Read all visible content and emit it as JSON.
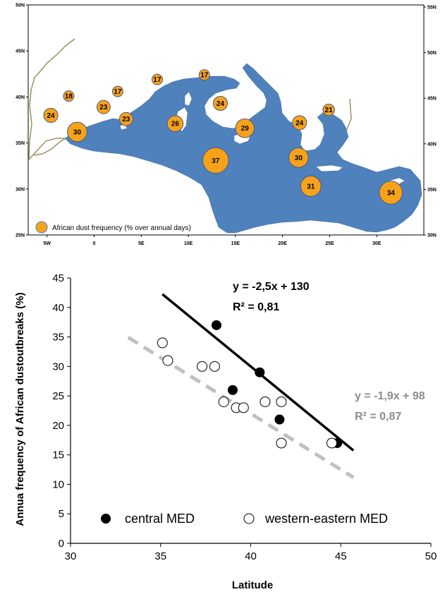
{
  "colors": {
    "sea": "#4f81bd",
    "dust": "#f7a21b",
    "coast": "#9d8f66",
    "trend_gray": "#c0c0c0",
    "eq_gray": "#8c8c8c"
  },
  "chart_data": [
    {
      "type": "scatter",
      "map": true,
      "legend_label": "African dust frequency (% over annual days)",
      "left_lat_ticks": [
        "50N",
        "45N",
        "40N",
        "35N",
        "30N",
        "25N"
      ],
      "right_lat_ticks": [
        "55N",
        "50N",
        "45N",
        "40N",
        "35N",
        "30N"
      ],
      "lon_ticks": [
        "5W",
        "0",
        "5E",
        "10E",
        "15E",
        "20E",
        "25E",
        "30E"
      ],
      "xlim": [
        -7,
        35
      ],
      "ylim": [
        25,
        50
      ],
      "sites": [
        {
          "lon": -4.6,
          "lat": 38.0,
          "value": 24
        },
        {
          "lon": -2.7,
          "lat": 40.1,
          "value": 18
        },
        {
          "lon": -1.8,
          "lat": 36.2,
          "value": 30
        },
        {
          "lon": 1.0,
          "lat": 38.9,
          "value": 23
        },
        {
          "lon": 2.5,
          "lat": 40.6,
          "value": 17
        },
        {
          "lon": 3.4,
          "lat": 37.6,
          "value": 23
        },
        {
          "lon": 6.7,
          "lat": 41.9,
          "value": 17
        },
        {
          "lon": 8.6,
          "lat": 37.1,
          "value": 26
        },
        {
          "lon": 11.7,
          "lat": 42.4,
          "value": 17
        },
        {
          "lon": 12.9,
          "lat": 33.1,
          "value": 37
        },
        {
          "lon": 13.4,
          "lat": 39.3,
          "value": 24
        },
        {
          "lon": 16.0,
          "lat": 36.6,
          "value": 29
        },
        {
          "lon": 21.8,
          "lat": 37.2,
          "value": 24
        },
        {
          "lon": 21.7,
          "lat": 33.4,
          "value": 30
        },
        {
          "lon": 24.9,
          "lat": 38.6,
          "value": 21
        },
        {
          "lon": 23.0,
          "lat": 30.3,
          "value": 31
        },
        {
          "lon": 31.5,
          "lat": 29.6,
          "value": 34
        }
      ]
    },
    {
      "type": "scatter",
      "xlabel": "Latitude",
      "ylabel": "Annua frequency of African dustoutbreaks (%)",
      "xlim": [
        30,
        50
      ],
      "ylim": [
        0,
        45
      ],
      "x_ticks": [
        30,
        35,
        40,
        45,
        50
      ],
      "y_ticks": [
        0,
        5,
        10,
        15,
        20,
        25,
        30,
        35,
        40,
        45
      ],
      "series": [
        {
          "name": "central MED",
          "style": "filled",
          "points": [
            [
              38.1,
              37
            ],
            [
              40.5,
              29
            ],
            [
              39.0,
              26
            ],
            [
              41.6,
              21
            ],
            [
              44.8,
              17
            ]
          ]
        },
        {
          "name": "western-eastern MED",
          "style": "open",
          "points": [
            [
              35.1,
              34
            ],
            [
              35.4,
              31
            ],
            [
              37.3,
              30
            ],
            [
              38.0,
              30
            ],
            [
              38.5,
              24
            ],
            [
              39.2,
              23
            ],
            [
              39.6,
              23
            ],
            [
              40.8,
              24
            ],
            [
              41.7,
              24
            ],
            [
              41.7,
              17
            ],
            [
              44.5,
              17
            ]
          ]
        }
      ],
      "trendlines": [
        {
          "label": "y = -2,5x + 130",
          "r2": "R² = 0,81",
          "slope": -2.5,
          "intercept": 130,
          "x_range": [
            35.1,
            45.7
          ],
          "style": "solid-black"
        },
        {
          "label": "y = -1,9x + 98",
          "r2": "R² = 0,87",
          "slope": -1.9,
          "intercept": 98,
          "x_range": [
            33.2,
            45.7
          ],
          "style": "dashed-gray"
        }
      ]
    }
  ]
}
